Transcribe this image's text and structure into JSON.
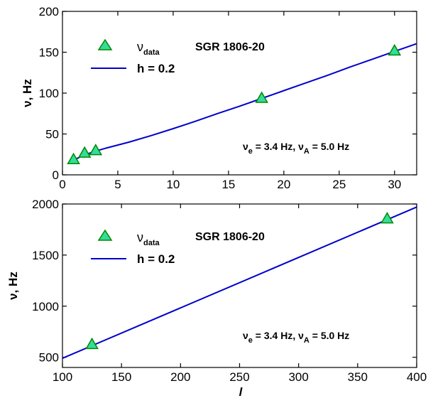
{
  "chart_data": [
    {
      "type": "line",
      "title": "SGR 1806-20",
      "xlabel": "",
      "ylabel": "ν, Hz",
      "xlim": [
        0,
        32
      ],
      "ylim": [
        0,
        200
      ],
      "xticks": [
        0,
        5,
        10,
        15,
        20,
        25,
        30
      ],
      "yticks": [
        0,
        50,
        100,
        150,
        200
      ],
      "grid": false,
      "legend_position": "top-left",
      "series": [
        {
          "name": "h = 0.2",
          "kind": "line",
          "color": "#0000cc",
          "x": [
            1,
            2,
            3,
            4,
            6,
            8,
            10,
            12,
            14,
            16,
            18,
            20,
            22,
            24,
            26,
            28,
            30,
            32
          ],
          "y": [
            18,
            24.5,
            29,
            33,
            40,
            48,
            56.5,
            65.5,
            75,
            84,
            93.5,
            103,
            112.5,
            122,
            132,
            141.5,
            151,
            160.5
          ]
        },
        {
          "name": "ν",
          "name_sub": "data",
          "kind": "markers",
          "marker": "triangle",
          "color": "#33dd99",
          "edge": "#008800",
          "x": [
            1,
            2,
            3,
            18,
            30
          ],
          "y": [
            18,
            26,
            29,
            93,
            151
          ]
        }
      ],
      "annotation": {
        "nu": "ν",
        "e": "e",
        "mid": " = 3.4 Hz, ",
        "A": "A",
        "end": " = 5.0 Hz"
      }
    },
    {
      "type": "line",
      "title": "SGR 1806-20",
      "xlabel": "l",
      "ylabel": "ν, Hz",
      "xlim": [
        100,
        400
      ],
      "ylim": [
        400,
        2000
      ],
      "xticks": [
        100,
        150,
        200,
        250,
        300,
        350,
        400
      ],
      "yticks": [
        500,
        1000,
        1500,
        2000
      ],
      "grid": false,
      "legend_position": "top-left",
      "series": [
        {
          "name": "h = 0.2",
          "kind": "line",
          "color": "#0000cc",
          "x": [
            100,
            400
          ],
          "y": [
            490,
            1970
          ]
        },
        {
          "name": "ν",
          "name_sub": "data",
          "kind": "markers",
          "marker": "triangle",
          "color": "#33dd99",
          "edge": "#008800",
          "x": [
            125,
            375
          ],
          "y": [
            620,
            1850
          ]
        }
      ],
      "annotation": {
        "nu": "ν",
        "e": "e",
        "mid": " = 3.4 Hz, ",
        "A": "A",
        "end": " = 5.0 Hz"
      }
    }
  ]
}
